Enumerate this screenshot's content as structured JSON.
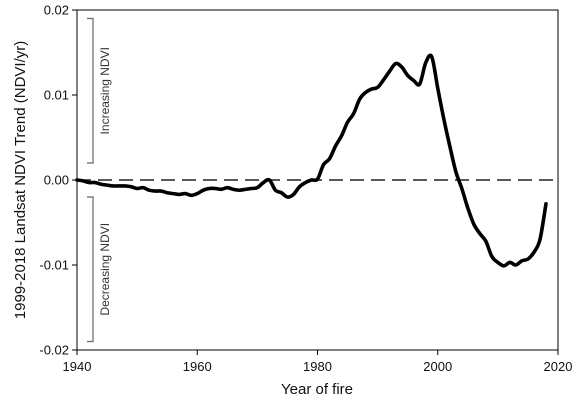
{
  "chart_data": {
    "type": "line",
    "title": "",
    "xlabel": "Year of fire",
    "ylabel": "1999-2018 Landsat NDVI Trend (NDVI/yr)",
    "xlim": [
      1940,
      2020
    ],
    "ylim": [
      -0.02,
      0.02
    ],
    "xticks": [
      1940,
      1960,
      1980,
      2000,
      2020
    ],
    "yticks": [
      0.02,
      0.01,
      0.0,
      -0.01,
      -0.02
    ],
    "xtick_labels": [
      "1940",
      "1960",
      "1980",
      "2000",
      "2020"
    ],
    "ytick_labels": [
      "0.02",
      "0.01",
      "0.00",
      "-0.01",
      "-0.02"
    ],
    "grid": false,
    "reference_line": {
      "y": 0.0,
      "style": "dashed"
    },
    "annotations": [
      {
        "text": "Increasing NDVI",
        "y_range": [
          0.002,
          0.019
        ]
      },
      {
        "text": "Decreasing NDVI",
        "y_range": [
          -0.019,
          -0.002
        ]
      }
    ],
    "series": [
      {
        "x": [
          1940,
          1941,
          1942,
          1943,
          1944,
          1945,
          1946,
          1947,
          1948,
          1949,
          1950,
          1951,
          1952,
          1953,
          1954,
          1955,
          1956,
          1957,
          1958,
          1959,
          1960,
          1961,
          1962,
          1963,
          1964,
          1965,
          1966,
          1967,
          1968,
          1969,
          1970,
          1971,
          1972,
          1973,
          1974,
          1975,
          1976,
          1977,
          1978,
          1979,
          1980,
          1981,
          1982,
          1983,
          1984,
          1985,
          1986,
          1987,
          1988,
          1989,
          1990,
          1991,
          1992,
          1993,
          1994,
          1995,
          1996,
          1997,
          1998,
          1999,
          2000,
          2001,
          2002,
          2003,
          2004,
          2005,
          2006,
          2007,
          2008,
          2009,
          2010,
          2011,
          2012,
          2013,
          2014,
          2015,
          2016,
          2017,
          2018
        ],
        "values": [
          0.0,
          -0.0001,
          -0.0003,
          -0.0003,
          -0.0005,
          -0.0006,
          -0.0007,
          -0.0007,
          -0.0007,
          -0.0008,
          -0.001,
          -0.0009,
          -0.0012,
          -0.0013,
          -0.0013,
          -0.0015,
          -0.0016,
          -0.0017,
          -0.0016,
          -0.0018,
          -0.0016,
          -0.0012,
          -0.001,
          -0.001,
          -0.0011,
          -0.0009,
          -0.0011,
          -0.0012,
          -0.0011,
          -0.001,
          -0.0009,
          -0.0003,
          0.0,
          -0.0012,
          -0.0015,
          -0.002,
          -0.0017,
          -0.0008,
          -0.0003,
          0.0,
          0.0001,
          0.0018,
          0.0025,
          0.004,
          0.0052,
          0.0068,
          0.0078,
          0.0095,
          0.0103,
          0.0107,
          0.0109,
          0.0118,
          0.0128,
          0.0137,
          0.0133,
          0.0123,
          0.0117,
          0.0113,
          0.0138,
          0.0145,
          0.0108,
          0.0072,
          0.004,
          0.001,
          -0.001,
          -0.0033,
          -0.0052,
          -0.0063,
          -0.0072,
          -0.009,
          -0.0097,
          -0.0101,
          -0.0097,
          -0.01,
          -0.0095,
          -0.0093,
          -0.0085,
          -0.007,
          -0.0028
        ]
      }
    ]
  }
}
